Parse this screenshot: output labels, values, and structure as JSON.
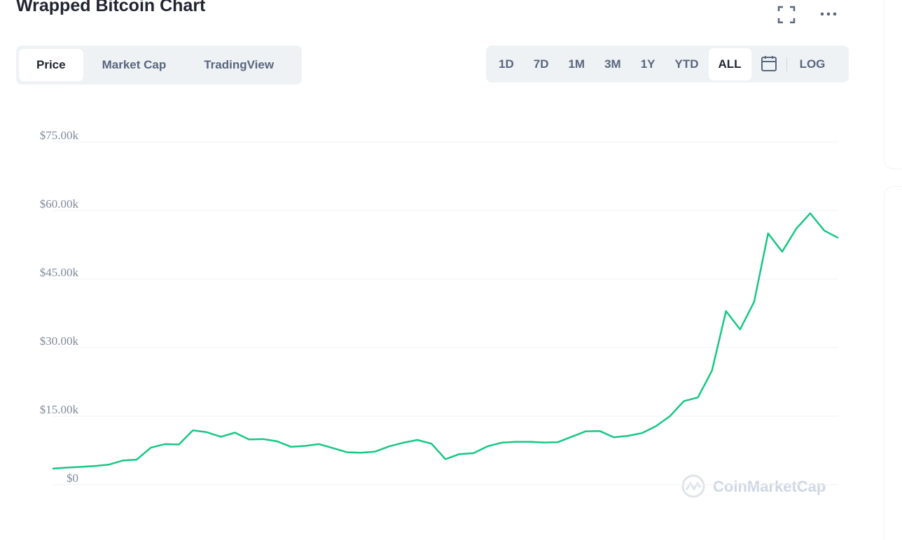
{
  "header": {
    "title": "Wrapped Bitcoin Chart"
  },
  "tabs": [
    "Price",
    "Market Cap",
    "TradingView"
  ],
  "ranges": [
    "1D",
    "7D",
    "1M",
    "3M",
    "1Y",
    "YTD",
    "ALL"
  ],
  "log_button": "LOG",
  "watermark": "CoinMarketCap",
  "chart_data": {
    "type": "line",
    "color": "#16c784",
    "grid": true,
    "ylim": [
      0,
      75000
    ],
    "yticks": [
      {
        "value": 0,
        "label": "$0"
      },
      {
        "value": 15000,
        "label": "$15.00k"
      },
      {
        "value": 30000,
        "label": "$30.00k"
      },
      {
        "value": 45000,
        "label": "$45.00k"
      },
      {
        "value": 60000,
        "label": "$60.00k"
      },
      {
        "value": 75000,
        "label": "$75.00k"
      }
    ],
    "values": [
      3520,
      3750,
      3900,
      4100,
      4400,
      5300,
      5500,
      8100,
      8900,
      8800,
      11900,
      11500,
      10500,
      11400,
      9900,
      10000,
      9500,
      8300,
      8500,
      8900,
      8000,
      7100,
      7000,
      7250,
      8400,
      9200,
      9800,
      9000,
      5600,
      6700,
      6900,
      8400,
      9200,
      9400,
      9400,
      9250,
      9300,
      10500,
      11700,
      11750,
      10400,
      10700,
      11300,
      12800,
      15000,
      18300,
      19100,
      25000,
      38000,
      34000,
      40000,
      55000,
      51000,
      56000,
      59400,
      55600,
      54000
    ]
  }
}
